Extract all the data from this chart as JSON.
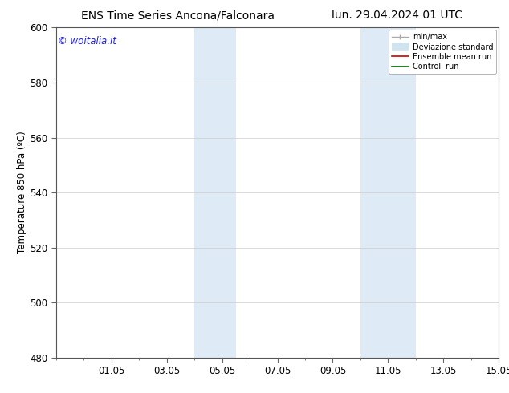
{
  "title_left": "ENS Time Series Ancona/Falconara",
  "title_right": "lun. 29.04.2024 01 UTC",
  "ylabel": "Temperature 850 hPa (ºC)",
  "ylim": [
    480,
    600
  ],
  "yticks": [
    480,
    500,
    520,
    540,
    560,
    580,
    600
  ],
  "xtick_labels": [
    "01.05",
    "03.05",
    "05.05",
    "07.05",
    "09.05",
    "11.05",
    "13.05",
    "15.05"
  ],
  "xlim_start": 0,
  "xlim_end": 16,
  "xtick_positions": [
    2,
    4,
    6,
    8,
    10,
    12,
    14,
    16
  ],
  "watermark": "© woitalia.it",
  "watermark_color": "#1a1aff",
  "background_color": "#ffffff",
  "shade_bands": [
    {
      "x_start": 5.0,
      "x_end": 6.5,
      "color": "#deeaf5"
    },
    {
      "x_start": 11.0,
      "x_end": 13.0,
      "color": "#deeaf5"
    }
  ],
  "title_fontsize": 10,
  "tick_fontsize": 8.5,
  "ylabel_fontsize": 8.5,
  "watermark_fontsize": 8.5
}
